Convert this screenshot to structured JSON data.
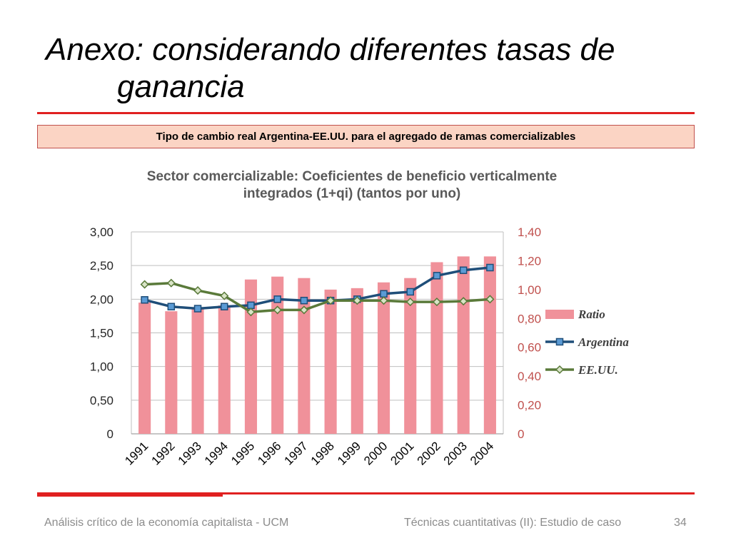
{
  "slide": {
    "title_line1": "Anexo: considerando diferentes tasas de",
    "title_line2": "ganancia",
    "subtitle": "Tipo de cambio real Argentina-EE.UU. para el agregado de ramas comercializables",
    "footer_left": "Análisis crítico de la economía capitalista - UCM",
    "footer_center": "Técnicas cuantitativas (II): Estudio de caso",
    "page_number": "34",
    "accent_color": "#e02020"
  },
  "chart_data": {
    "type": "bar",
    "title_line1": "Sector comercializable: Coeficientes de beneficio verticalmente",
    "title_line2": "integrados (1+qi) (tantos por uno)",
    "categories": [
      "1991",
      "1992",
      "1993",
      "1994",
      "1995",
      "1996",
      "1997",
      "1998",
      "1999",
      "2000",
      "2001",
      "2002",
      "2003",
      "2004"
    ],
    "left_axis": {
      "ylim": [
        0,
        3.0
      ],
      "ticks": [
        "0",
        "0,50",
        "1,00",
        "1,50",
        "2,00",
        "2,50",
        "3,00"
      ]
    },
    "right_axis": {
      "ylim": [
        0,
        1.4
      ],
      "ticks": [
        "0",
        "0,20",
        "0,40",
        "0,60",
        "0,80",
        "1,00",
        "1,20",
        "1,40"
      ]
    },
    "grid": true,
    "legend_position": "right",
    "series": [
      {
        "name": "Ratio",
        "kind": "bar",
        "axis": "right",
        "color": "#f0919a",
        "values": [
          0.91,
          0.85,
          0.87,
          0.89,
          1.07,
          1.09,
          1.08,
          1.0,
          1.01,
          1.05,
          1.08,
          1.19,
          1.23,
          1.23
        ]
      },
      {
        "name": "Argentina",
        "kind": "line",
        "axis": "left",
        "color": "#1f4e79",
        "marker": "square",
        "marker_color": "#5b9bd5",
        "values": [
          1.99,
          1.89,
          1.86,
          1.89,
          1.91,
          2.0,
          1.98,
          1.98,
          2.0,
          2.08,
          2.11,
          2.35,
          2.43,
          2.47
        ]
      },
      {
        "name": "EE.UU.",
        "kind": "line",
        "axis": "left",
        "color": "#5a7a3a",
        "marker": "diamond",
        "marker_color": "#d9e4c7",
        "values": [
          2.22,
          2.24,
          2.13,
          2.05,
          1.81,
          1.84,
          1.84,
          1.98,
          1.98,
          1.98,
          1.96,
          1.96,
          1.97,
          2.0
        ]
      }
    ]
  }
}
